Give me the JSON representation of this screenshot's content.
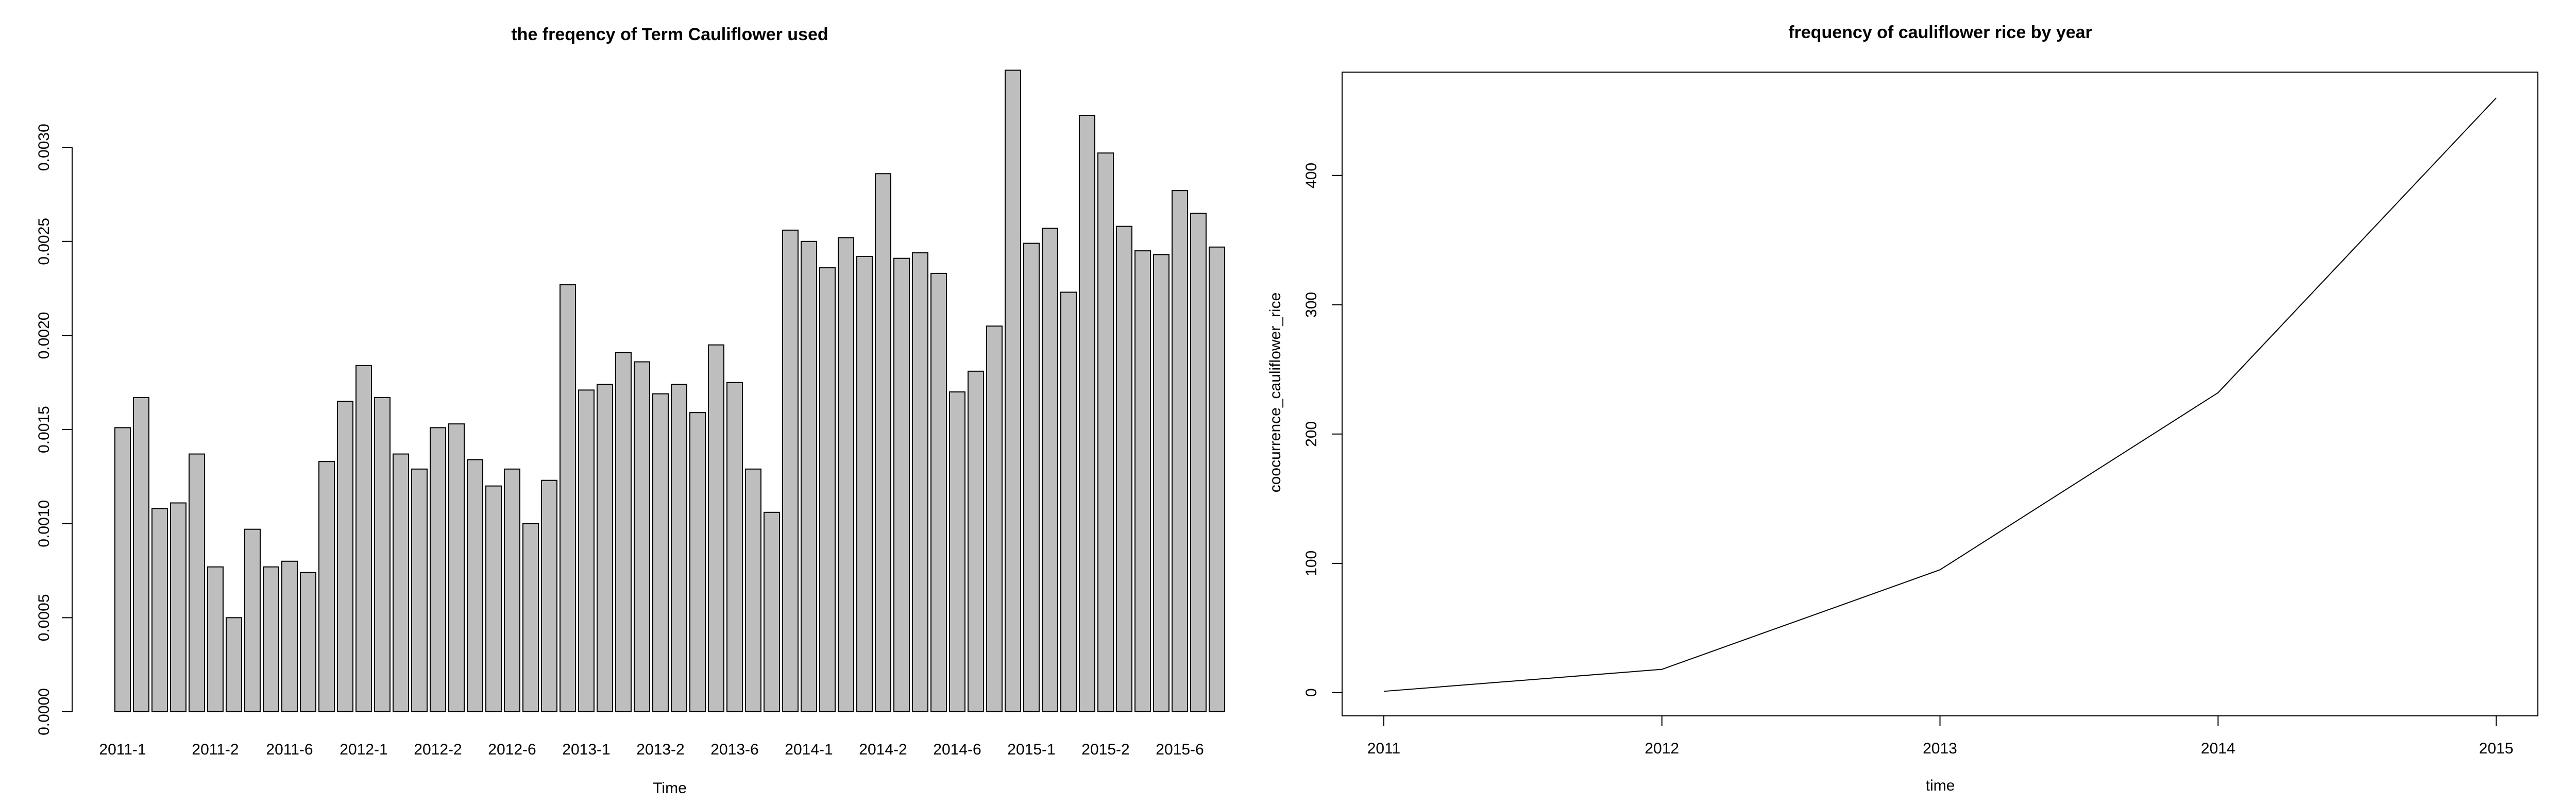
{
  "chart_data": [
    {
      "type": "bar",
      "title": "the freqency of Term Cauliflower used",
      "xlabel": "Time",
      "ylabel": "",
      "ylim": [
        0,
        0.0034
      ],
      "yticks": [
        "0.0000",
        "0.0005",
        "0.0010",
        "0.0015",
        "0.0020",
        "0.0025",
        "0.0030"
      ],
      "ytick_values": [
        0,
        0.0005,
        0.001,
        0.0015,
        0.002,
        0.0025,
        0.003
      ],
      "xtick_labels": [
        {
          "index": 0,
          "label": "2011-1"
        },
        {
          "index": 5,
          "label": "2011-2"
        },
        {
          "index": 9,
          "label": "2011-6"
        },
        {
          "index": 13,
          "label": "2012-1"
        },
        {
          "index": 17,
          "label": "2012-2"
        },
        {
          "index": 21,
          "label": "2012-6"
        },
        {
          "index": 25,
          "label": "2013-1"
        },
        {
          "index": 29,
          "label": "2013-2"
        },
        {
          "index": 33,
          "label": "2013-6"
        },
        {
          "index": 37,
          "label": "2014-1"
        },
        {
          "index": 41,
          "label": "2014-2"
        },
        {
          "index": 45,
          "label": "2014-6"
        },
        {
          "index": 49,
          "label": "2015-1"
        },
        {
          "index": 53,
          "label": "2015-2"
        },
        {
          "index": 57,
          "label": "2015-6"
        }
      ],
      "values": [
        0.00151,
        0.00167,
        0.00108,
        0.00111,
        0.00137,
        0.00077,
        0.0005,
        0.00097,
        0.00077,
        0.0008,
        0.00074,
        0.00133,
        0.00165,
        0.00184,
        0.00167,
        0.00137,
        0.00129,
        0.00151,
        0.00153,
        0.00134,
        0.0012,
        0.00129,
        0.001,
        0.00123,
        0.00227,
        0.00171,
        0.00174,
        0.00191,
        0.00186,
        0.00169,
        0.00174,
        0.00159,
        0.00195,
        0.00175,
        0.00129,
        0.00106,
        0.00256,
        0.0025,
        0.00236,
        0.00252,
        0.00242,
        0.00286,
        0.00241,
        0.00244,
        0.00233,
        0.0017,
        0.00181,
        0.00205,
        0.00341,
        0.00249,
        0.00257,
        0.00223,
        0.00317,
        0.00297,
        0.00258,
        0.00245,
        0.00243,
        0.00277,
        0.00265,
        0.00247
      ],
      "grid": false
    },
    {
      "type": "line",
      "title": "frequency of cauliflower rice by year",
      "xlabel": "time",
      "ylabel": "coocurrence_cauliflower_rice",
      "x": [
        2011,
        2012,
        2013,
        2014,
        2015
      ],
      "values": [
        1,
        18,
        95,
        232,
        460
      ],
      "xlim": [
        2010.85,
        2015.15
      ],
      "ylim": [
        -18,
        480
      ],
      "xticks": [
        "2011",
        "2012",
        "2013",
        "2014",
        "2015"
      ],
      "xtick_values": [
        2011,
        2012,
        2013,
        2014,
        2015
      ],
      "yticks": [
        "0",
        "100",
        "200",
        "300",
        "400"
      ],
      "ytick_values": [
        0,
        100,
        200,
        300,
        400
      ],
      "grid": false
    }
  ]
}
